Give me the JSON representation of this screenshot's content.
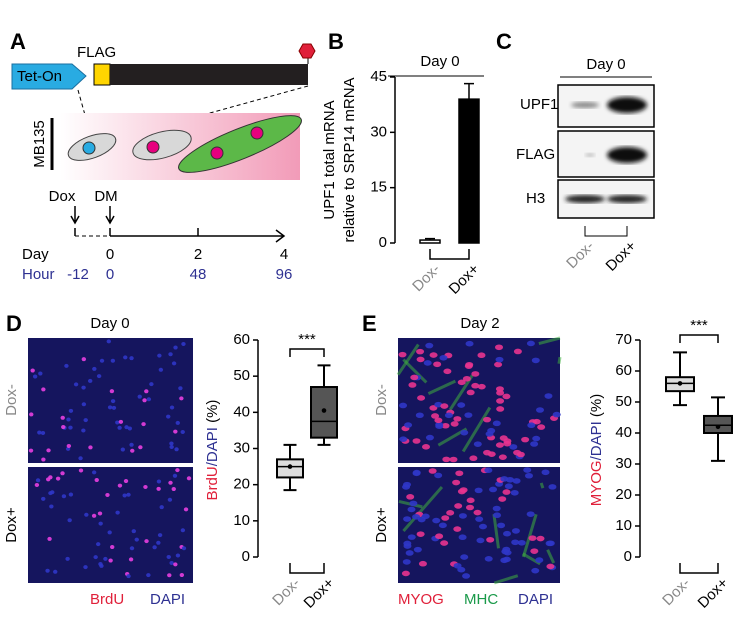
{
  "panel_a": {
    "label": "A",
    "promoter": "Tet-On",
    "tag": "FLAG",
    "cell_line": "MB135",
    "treatments": [
      "Dox",
      "DM"
    ],
    "timeline": {
      "day_label": "Day",
      "days": [
        "0",
        "2",
        "4"
      ],
      "hour_label": "Hour",
      "hours": [
        "-12",
        "0",
        "48",
        "96"
      ]
    }
  },
  "panel_c": {
    "label": "C",
    "title": "Day 0",
    "rows": [
      "UPF1",
      "FLAG",
      "H3"
    ],
    "columns": [
      "Dox-",
      "Dox+"
    ],
    "column_colors": [
      "#888888",
      "#000000"
    ]
  },
  "panel_d": {
    "label": "D",
    "title": "Day 0",
    "image_rows": [
      "Dox-",
      "Dox+"
    ],
    "image_row_colors": [
      "#888888",
      "#000000"
    ],
    "stains": [
      {
        "text": "BrdU",
        "color": "#e0203a"
      },
      {
        "text": "DAPI",
        "color": "#2e3192"
      }
    ]
  },
  "panel_e": {
    "label": "E",
    "title": "Day 2",
    "image_rows": [
      "Dox-",
      "Dox+"
    ],
    "image_row_colors": [
      "#888888",
      "#000000"
    ],
    "stains": [
      {
        "text": "MYOG",
        "color": "#e0203a"
      },
      {
        "text": "MHC",
        "color": "#1a9a4a"
      },
      {
        "text": "DAPI",
        "color": "#2e3192"
      }
    ]
  },
  "chart_data": [
    {
      "type": "bar",
      "panel_label": "B",
      "title": "Day 0",
      "ylabel": [
        "UPF1 total mRNA",
        "relative to SRP14 mRNA"
      ],
      "categories": [
        "Dox-",
        "Dox+"
      ],
      "category_colors": [
        "#888888",
        "#000000"
      ],
      "values": [
        0.8,
        39
      ],
      "error": [
        0.4,
        4.2
      ],
      "colors": [
        "#ffffff",
        "#000000"
      ],
      "ylim": [
        0,
        45
      ],
      "yticks": [
        0,
        15,
        30,
        45
      ]
    },
    {
      "type": "box",
      "ylabel": [
        {
          "text": "BrdU",
          "color": "#e0203a"
        },
        {
          "text": "/DAPI",
          "color": "#2e3192"
        },
        {
          "text": " (%)",
          "color": "#000000"
        }
      ],
      "categories": [
        "Dox-",
        "Dox+"
      ],
      "category_colors": [
        "#888888",
        "#000000"
      ],
      "boxes": [
        {
          "whisker_low": 18.5,
          "q1": 22,
          "median": 25,
          "q3": 27,
          "whisker_high": 31,
          "mean": 25,
          "color": "#dddddd"
        },
        {
          "whisker_low": 31,
          "q1": 33,
          "median": 37.5,
          "q3": 47,
          "whisker_high": 53,
          "mean": 40.5,
          "color": "#555555"
        }
      ],
      "significance": "***",
      "ylim": [
        0,
        60
      ],
      "yticks": [
        0,
        10,
        20,
        30,
        40,
        50,
        60
      ]
    },
    {
      "type": "box",
      "ylabel": [
        {
          "text": "MYOG",
          "color": "#e0203a"
        },
        {
          "text": "/DAPI",
          "color": "#2e3192"
        },
        {
          "text": " (%)",
          "color": "#000000"
        }
      ],
      "categories": [
        "Dox-",
        "Dox+"
      ],
      "category_colors": [
        "#888888",
        "#000000"
      ],
      "boxes": [
        {
          "whisker_low": 49,
          "q1": 53.5,
          "median": 56,
          "q3": 58,
          "whisker_high": 66,
          "mean": 56,
          "color": "#dddddd"
        },
        {
          "whisker_low": 31,
          "q1": 40,
          "median": 42.5,
          "q3": 45.5,
          "whisker_high": 51.5,
          "mean": 42,
          "color": "#555555"
        }
      ],
      "significance": "***",
      "ylim": [
        0,
        70
      ],
      "yticks": [
        0,
        10,
        20,
        30,
        40,
        50,
        60,
        70
      ]
    }
  ]
}
